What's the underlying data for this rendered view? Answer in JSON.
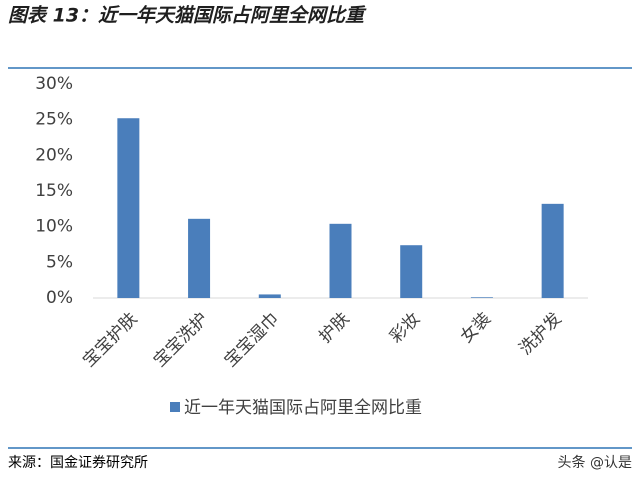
{
  "chart_data": {
    "type": "bar",
    "title": "图表 13：近一年天猫国际占阿里全网比重",
    "categories": [
      "宝宝护肤",
      "宝宝洗护",
      "宝宝湿巾",
      "护肤",
      "彩妆",
      "女装",
      "洗护发"
    ],
    "series": [
      {
        "name": "近一年天猫国际占阿里全网比重",
        "color": "#4a7ebb",
        "values": [
          25.2,
          11.1,
          0.5,
          10.4,
          7.4,
          0.1,
          13.2
        ]
      }
    ],
    "ylim": [
      0,
      30
    ],
    "yticks": [
      {
        "value": 0,
        "label": "0%"
      },
      {
        "value": 5,
        "label": "5%"
      },
      {
        "value": 10,
        "label": "10%"
      },
      {
        "value": 15,
        "label": "15%"
      },
      {
        "value": 20,
        "label": "20%"
      },
      {
        "value": 25,
        "label": "25%"
      },
      {
        "value": 30,
        "label": "30%"
      }
    ],
    "grid": false,
    "legend": "bottom",
    "source": "来源：国金证券研究所",
    "watermark": "头条 @认是"
  }
}
